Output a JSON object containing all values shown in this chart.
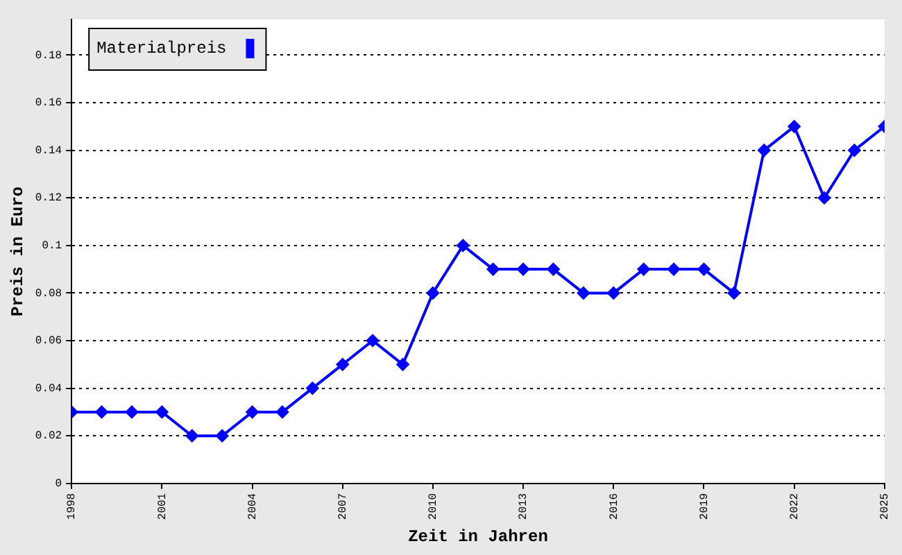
{
  "chart_data": {
    "type": "line",
    "xlabel": "Zeit in Jahren",
    "ylabel": "Preis in Euro",
    "x": [
      1998,
      1999,
      2000,
      2001,
      2002,
      2003,
      2004,
      2005,
      2006,
      2007,
      2008,
      2009,
      2010,
      2011,
      2012,
      2013,
      2014,
      2015,
      2016,
      2017,
      2018,
      2019,
      2020,
      2021,
      2022,
      2023,
      2024,
      2025
    ],
    "series": [
      {
        "name": "Materialpreis",
        "color": "#0000ff",
        "values": [
          0.03,
          0.03,
          0.03,
          0.03,
          0.02,
          0.02,
          0.03,
          0.03,
          0.04,
          0.05,
          0.06,
          0.05,
          0.08,
          0.1,
          0.09,
          0.09,
          0.09,
          0.08,
          0.08,
          0.09,
          0.09,
          0.09,
          0.08,
          0.14,
          0.15,
          0.12,
          0.14,
          0.15
        ]
      }
    ],
    "xlim": [
      1998,
      2025
    ],
    "xticks": [
      1998,
      2001,
      2004,
      2007,
      2010,
      2013,
      2016,
      2019,
      2022,
      2025
    ],
    "ylim": [
      0,
      0.195
    ],
    "yticks": [
      0,
      0.02,
      0.04,
      0.06,
      0.08,
      0.1,
      0.12,
      0.14,
      0.16,
      0.18
    ],
    "grid": "y",
    "legend": "top left",
    "marker": "diamond",
    "line_style": "solid"
  }
}
